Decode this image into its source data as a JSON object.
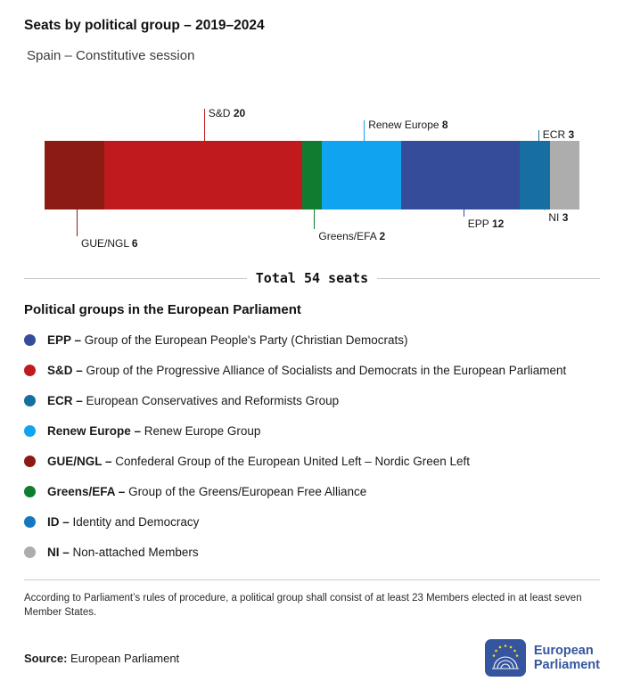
{
  "header": {
    "title": "Seats by political group – 2019–2024",
    "subtitle": "Spain – Constitutive session"
  },
  "chart_data": {
    "type": "bar",
    "variant": "horizontal-stacked-single-bar",
    "title": "Seats by political group – 2019–2024",
    "subtitle": "Spain – Constitutive session",
    "total_seats": 54,
    "total_label": "Total 54 seats",
    "segments": [
      {
        "group": "GUE/NGL",
        "seats": 6,
        "color": "#8c1b13",
        "label_side": "below",
        "label_pos_pct": 6.0,
        "leader_len": 30
      },
      {
        "group": "S&D",
        "seats": 20,
        "color": "#c01a1f",
        "label_side": "above",
        "label_pos_pct": 29.8,
        "leader_len": 36
      },
      {
        "group": "Greens/EFA",
        "seats": 2,
        "color": "#107c30",
        "label_side": "below",
        "label_pos_pct": 50.4,
        "leader_len": 22
      },
      {
        "group": "Renew Europe",
        "seats": 8,
        "color": "#0fa3f0",
        "label_side": "above",
        "label_pos_pct": 59.7,
        "leader_len": 23
      },
      {
        "group": "EPP",
        "seats": 12,
        "color": "#344c9a",
        "label_side": "below",
        "label_pos_pct": 78.3,
        "leader_len": 8
      },
      {
        "group": "ECR",
        "seats": 3,
        "color": "#176fa1",
        "label_side": "above",
        "label_pos_pct": 92.3,
        "leader_len": 12
      },
      {
        "group": "NI",
        "seats": 3,
        "color": "#adadad",
        "label_side": "below",
        "label_pos_pct": 93.4,
        "leader_len": 1
      }
    ]
  },
  "legend": {
    "heading": "Political groups in the European Parliament",
    "items": [
      {
        "abbr": "EPP –",
        "name": "Group of the European People's Party (Christian Democrats)",
        "color": "#344c9a"
      },
      {
        "abbr": "S&D –",
        "name": "Group of the Progressive Alliance of Socialists and Democrats in the European Parliament",
        "color": "#c01a1f"
      },
      {
        "abbr": "ECR –",
        "name": "European Conservatives and Reformists Group",
        "color": "#176fa1"
      },
      {
        "abbr": "Renew Europe –",
        "name": "Renew Europe Group",
        "color": "#0fa3f0"
      },
      {
        "abbr": "GUE/NGL –",
        "name": "Confederal Group of the European United Left – Nordic Green Left",
        "color": "#8c1b13"
      },
      {
        "abbr": "Greens/EFA –",
        "name": "Group of the Greens/European Free Alliance",
        "color": "#107c30"
      },
      {
        "abbr": "ID –",
        "name": "Identity and Democracy",
        "color": "#1578be"
      },
      {
        "abbr": "NI –",
        "name": "Non-attached Members",
        "color": "#adadad"
      }
    ]
  },
  "footnote": "According to Parliament’s rules of procedure, a political group shall consist of at least 23 Members elected in at least seven Member States.",
  "source": {
    "label": "Source:",
    "value": "European Parliament"
  },
  "logo": {
    "line1": "European",
    "line2": "Parliament"
  }
}
